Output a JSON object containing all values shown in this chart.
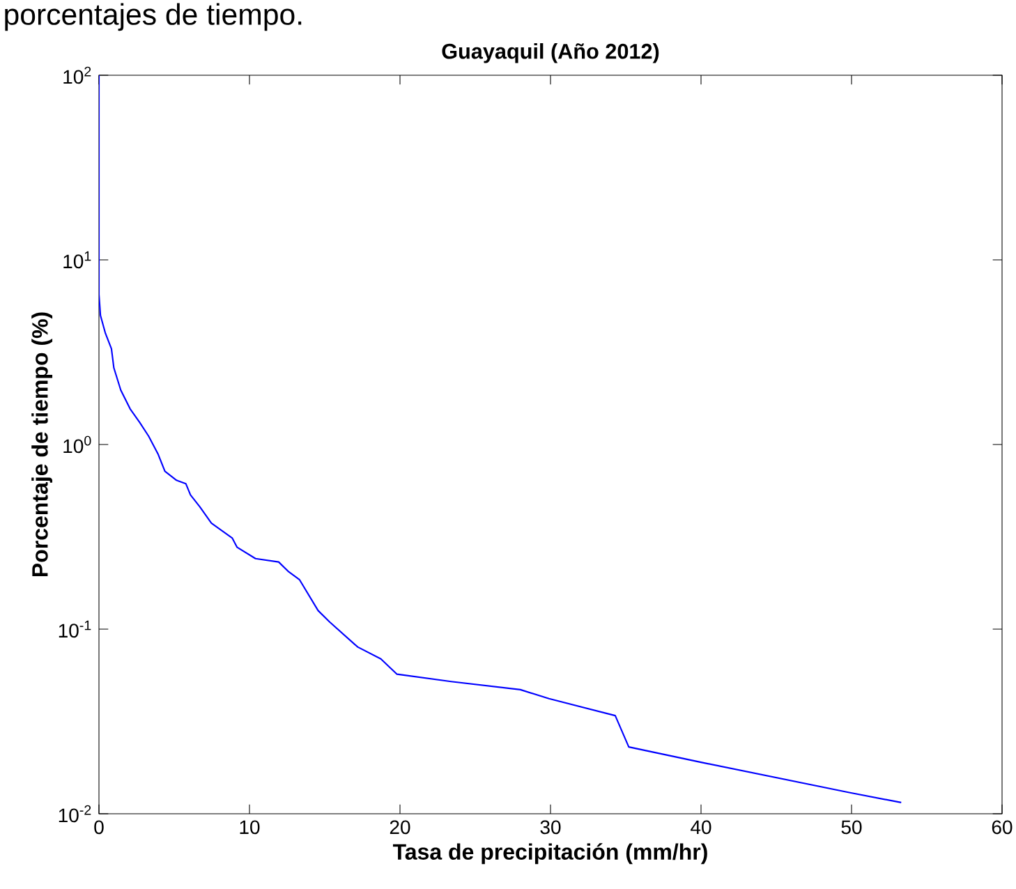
{
  "chart_data": {
    "type": "line",
    "title": "Guayaquil (Año 2012)",
    "xlabel": "Tasa de precipitación (mm/hr)",
    "ylabel": "Porcentaje de tiempo (%)",
    "annotations": [
      "porcentajes de tiempo."
    ],
    "log": "y",
    "grid": false,
    "marker": "none",
    "line_style": "solid",
    "xlim": [
      0,
      60
    ],
    "xticks": [
      0,
      10,
      20,
      30,
      40,
      50,
      60
    ],
    "ylim": [
      0.01,
      100
    ],
    "yticks": [
      {
        "value": 0.01,
        "label": "10$^{-2}$"
      },
      {
        "value": 0.1,
        "label": "10$^{-1}$"
      },
      {
        "value": 1,
        "label": "10$^{0}$"
      },
      {
        "value": 10,
        "label": "10$^{1}$"
      },
      {
        "value": 100,
        "label": "10$^{2}$"
      }
    ],
    "x": [
      0,
      0,
      0.1,
      0.43,
      0.83,
      0.99,
      1.45,
      2.07,
      2.7,
      3.3,
      3.92,
      4.38,
      5.15,
      5.77,
      6.08,
      6.7,
      7.47,
      8.86,
      9.17,
      10.4,
      11.94,
      12.56,
      13.33,
      14.56,
      15.34,
      17.19,
      18.73,
      19.8,
      23.4,
      28.0,
      29.9,
      34.3,
      35.2,
      40.0,
      49.9,
      53.3
    ],
    "series": [
      {
        "color": "#0000ff",
        "values": [
          100,
          6.5,
          5.0,
          4.0,
          3.3,
          2.6,
          1.97,
          1.56,
          1.32,
          1.11,
          0.89,
          0.716,
          0.64,
          0.614,
          0.533,
          0.46,
          0.375,
          0.311,
          0.278,
          0.241,
          0.231,
          0.206,
          0.185,
          0.126,
          0.109,
          0.08,
          0.069,
          0.057,
          0.052,
          0.047,
          0.042,
          0.034,
          0.023,
          0.019,
          0.013,
          0.0115
        ]
      }
    ]
  }
}
